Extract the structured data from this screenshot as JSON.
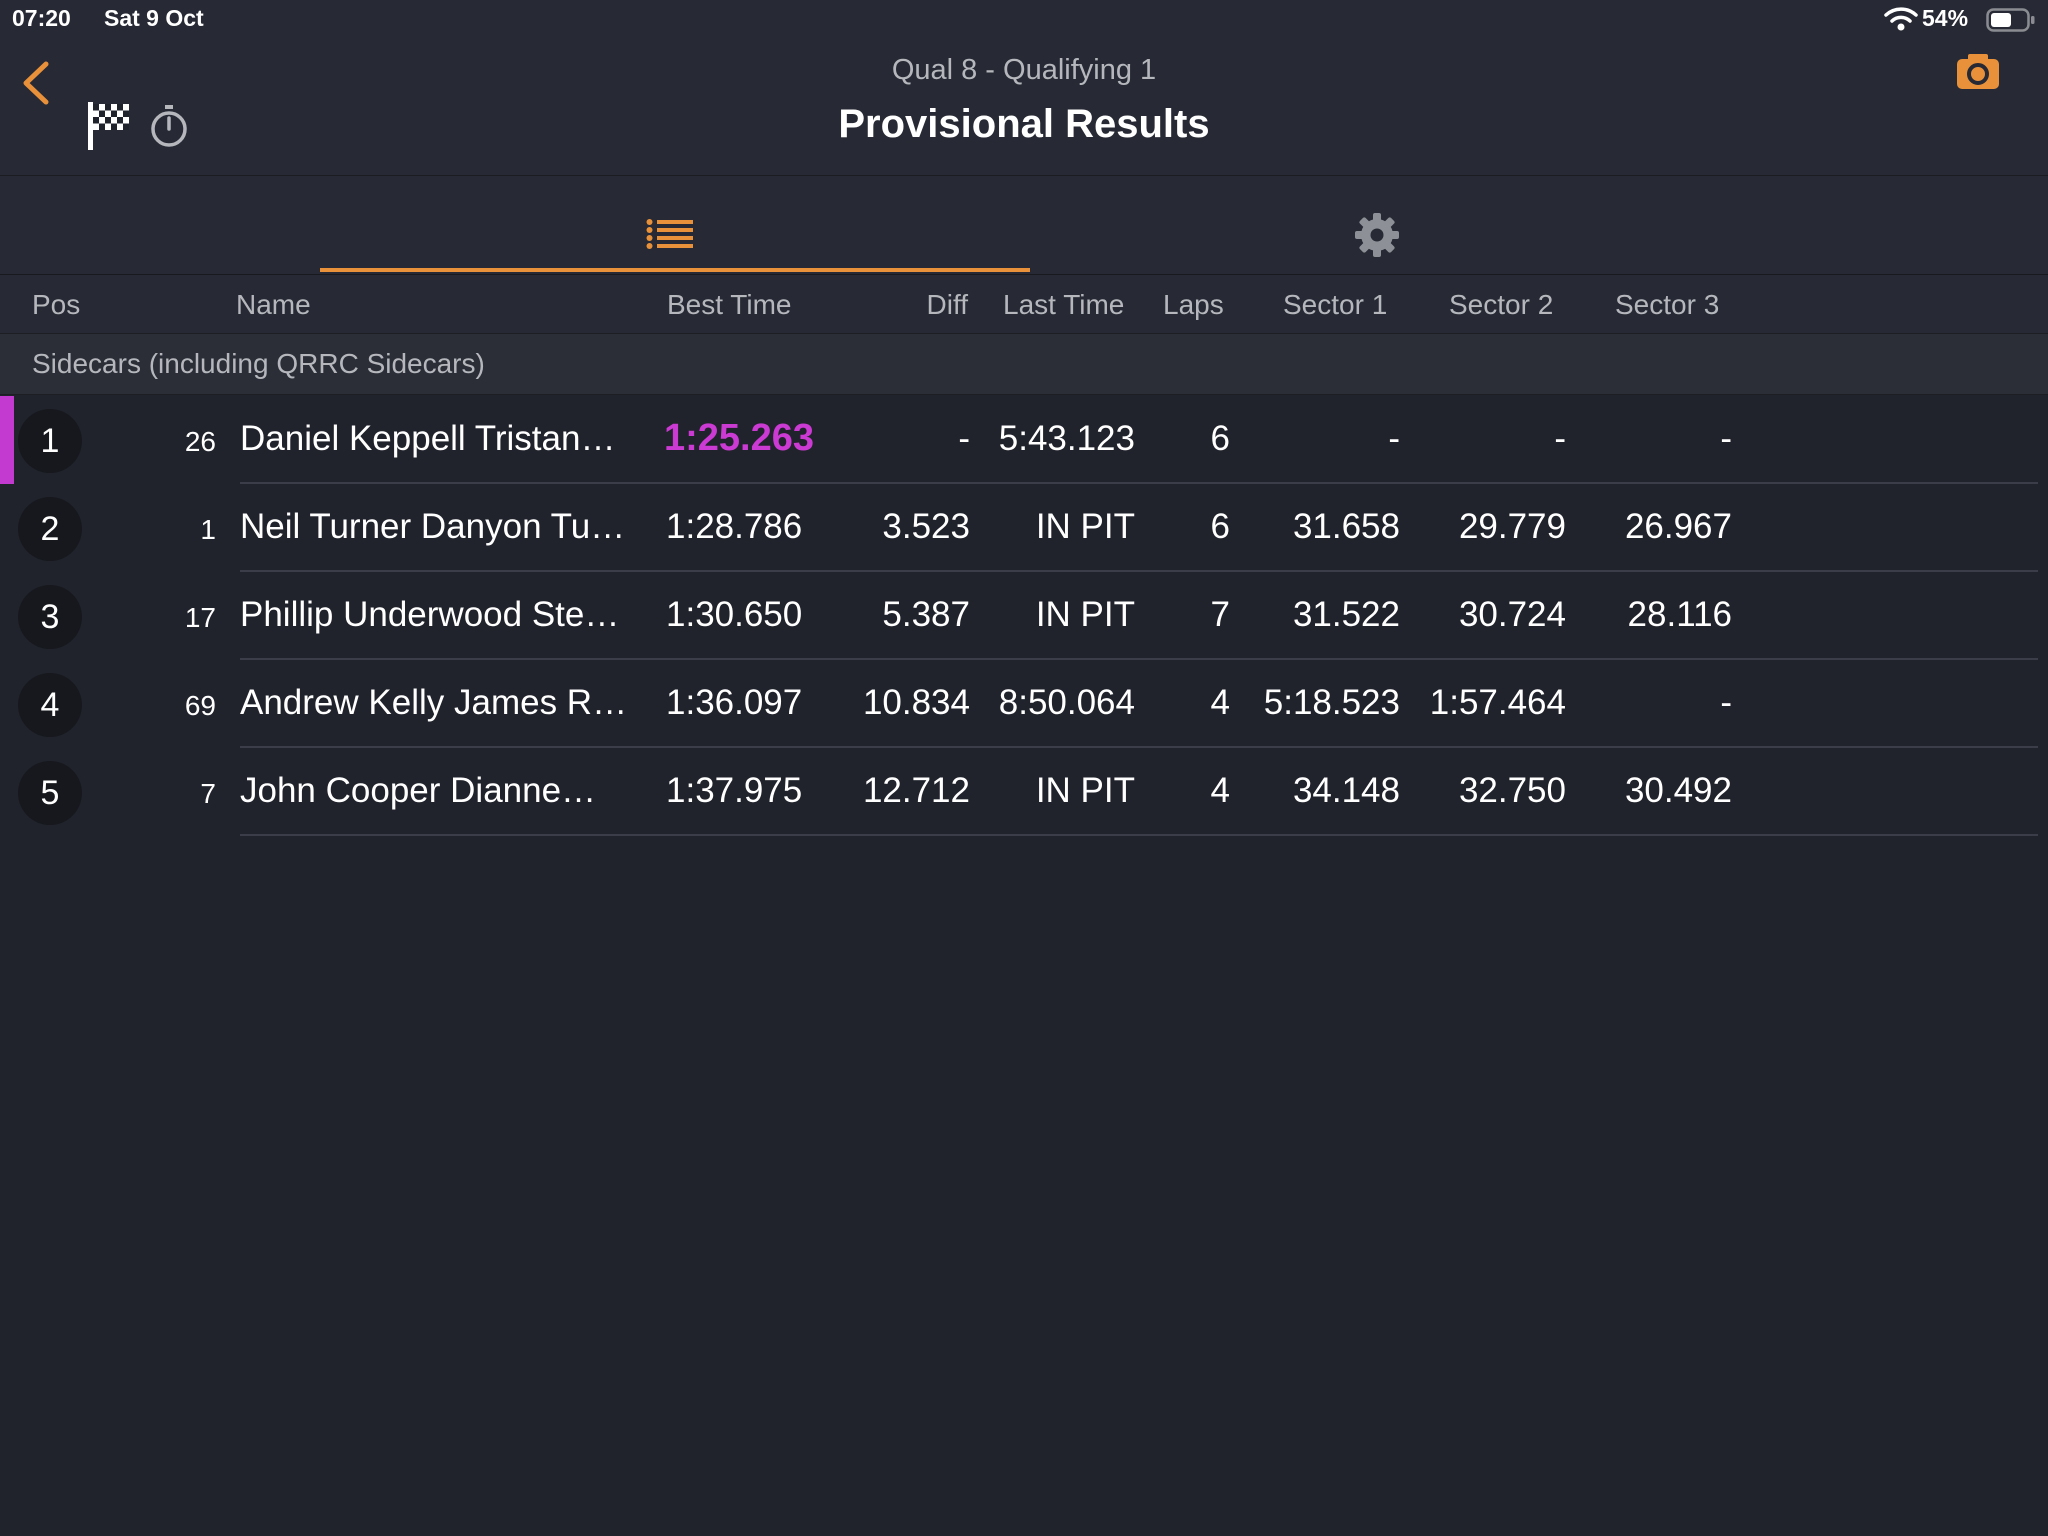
{
  "status_bar": {
    "time": "07:20",
    "date": "Sat 9 Oct",
    "battery": "54%"
  },
  "header": {
    "subtitle": "Qual 8  -  Qualifying 1",
    "title": "Provisional Results"
  },
  "colors": {
    "accent": "#e8913a",
    "fastest": "#cc3ad4"
  },
  "icons": [
    "back-chevron-icon",
    "checkered-flag-icon",
    "stopwatch-icon",
    "camera-icon",
    "list-icon",
    "gear-icon",
    "wifi-icon",
    "battery-icon"
  ],
  "columns": {
    "pos": "Pos",
    "name": "Name",
    "best": "Best Time",
    "diff": "Diff",
    "last": "Last Time",
    "laps": "Laps",
    "s1": "Sector 1",
    "s2": "Sector 2",
    "s3": "Sector 3"
  },
  "group": "Sidecars (including QRRC Sidecars)",
  "rows": [
    {
      "pos": "1",
      "num": "26",
      "name": "Daniel Keppell Tristan…",
      "best": "1:25.263",
      "diff": "-",
      "last": "5:43.123",
      "laps": "6",
      "s1": "-",
      "s2": "-",
      "s3": "-"
    },
    {
      "pos": "2",
      "num": "1",
      "name": "Neil Turner Danyon Tu…",
      "best": "1:28.786",
      "diff": "3.523",
      "last": "IN PIT",
      "laps": "6",
      "s1": "31.658",
      "s2": "29.779",
      "s3": "26.967"
    },
    {
      "pos": "3",
      "num": "17",
      "name": "Phillip Underwood Ste…",
      "best": "1:30.650",
      "diff": "5.387",
      "last": "IN PIT",
      "laps": "7",
      "s1": "31.522",
      "s2": "30.724",
      "s3": "28.116"
    },
    {
      "pos": "4",
      "num": "69",
      "name": "Andrew Kelly James R…",
      "best": "1:36.097",
      "diff": "10.834",
      "last": "8:50.064",
      "laps": "4",
      "s1": "5:18.523",
      "s2": "1:57.464",
      "s3": "-"
    },
    {
      "pos": "5",
      "num": "7",
      "name": "John Cooper Dianne…",
      "best": "1:37.975",
      "diff": "12.712",
      "last": "IN PIT",
      "laps": "4",
      "s1": "34.148",
      "s2": "32.750",
      "s3": "30.492"
    }
  ]
}
